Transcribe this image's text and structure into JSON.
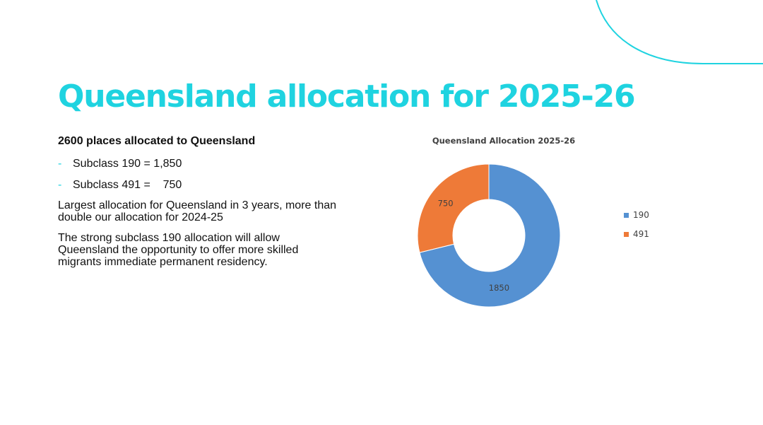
{
  "slide": {
    "title": "Queensland allocation for 2025-26",
    "subhead": "2600 places allocated to Queensland",
    "bullets": [
      {
        "dash": "-",
        "text": "Subclass 190 = 1,850"
      },
      {
        "dash": "-",
        "text": "Subclass 491 =    750"
      }
    ],
    "paragraphs": [
      "Largest allocation for Queensland in 3 years, more than double our allocation for 2024-25",
      "The strong subclass 190 allocation will allow Queensland the opportunity to offer more skilled migrants immediate permanent residency."
    ],
    "accent_color": "#1fd3e0"
  },
  "chart_data": {
    "type": "pie",
    "donut": true,
    "title": "Queensland Allocation 2025-26",
    "categories": [
      "190",
      "491"
    ],
    "values": [
      1850,
      750
    ],
    "data_labels": [
      "1850",
      "750"
    ],
    "colors": [
      "#5591d2",
      "#ee7a38"
    ],
    "legend_placement": "right"
  }
}
